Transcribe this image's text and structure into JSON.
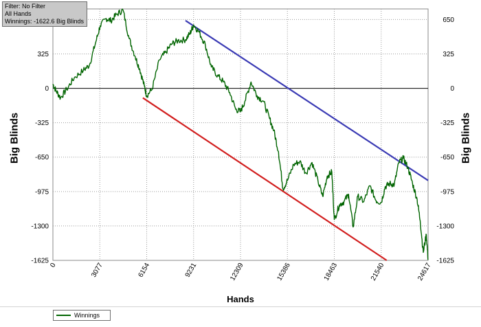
{
  "overlay": {
    "filter_line": "Filter: No Filter",
    "hands_line": "All Hands",
    "winnings_line": "Winnings: -1622.6 Big Blinds"
  },
  "colors": {
    "series": "#006400",
    "upper_trend": "#3a3ab4",
    "lower_trend": "#d21e1e",
    "grid": "#9a9a9a",
    "zero_line": "#000000"
  },
  "chart_data": {
    "type": "line",
    "xlabel": "Hands",
    "ylabel": "Big Blinds",
    "xlim": [
      0,
      24617
    ],
    "ylim": [
      -1625,
      750
    ],
    "x_ticks": [
      "0",
      "3077",
      "6154",
      "9231",
      "12309",
      "15386",
      "18463",
      "21540",
      "24617"
    ],
    "x_tick_values": [
      0,
      3077,
      6154,
      9231,
      12309,
      15386,
      18463,
      21540,
      24617
    ],
    "y_ticks": [
      "650",
      "325",
      "0",
      "-325",
      "-650",
      "-975",
      "-1300",
      "-1625"
    ],
    "y_tick_values": [
      650,
      325,
      0,
      -325,
      -650,
      -975,
      -1300,
      -1625
    ],
    "grid": true,
    "legend_position": "bottom-left",
    "series": [
      {
        "name": "Winnings",
        "color": "#006400",
        "x": [
          0,
          200,
          500,
          900,
          1400,
          2000,
          2400,
          2800,
          3100,
          3500,
          3800,
          4200,
          4600,
          5000,
          5400,
          5700,
          6000,
          6154,
          6500,
          7000,
          7400,
          7800,
          8200,
          8700,
          9000,
          9231,
          9600,
          10000,
          10400,
          10800,
          11200,
          11600,
          12000,
          12309,
          12600,
          13000,
          13400,
          13800,
          14200,
          14500,
          14800,
          15100,
          15386,
          15800,
          16200,
          16600,
          17000,
          17400,
          17700,
          18000,
          18300,
          18463,
          18800,
          19100,
          19400,
          19700,
          20000,
          20400,
          20800,
          21200,
          21540,
          21800,
          22100,
          22400,
          22700,
          23000,
          23300,
          23600,
          23900,
          24100,
          24300,
          24500,
          24617
        ],
        "y": [
          40,
          -20,
          -90,
          -10,
          100,
          170,
          220,
          430,
          590,
          660,
          640,
          700,
          740,
          470,
          300,
          180,
          20,
          -70,
          -10,
          270,
          340,
          420,
          450,
          460,
          520,
          600,
          530,
          410,
          200,
          120,
          60,
          -40,
          -200,
          -220,
          -120,
          60,
          -70,
          -120,
          -280,
          -400,
          -600,
          -950,
          -870,
          -720,
          -690,
          -800,
          -700,
          -880,
          -1020,
          -830,
          -790,
          -1240,
          -1100,
          -1070,
          -1000,
          -1310,
          -1020,
          -1070,
          -920,
          -1060,
          -1080,
          -930,
          -900,
          -910,
          -700,
          -660,
          -750,
          -900,
          -1050,
          -1250,
          -1550,
          -1380,
          -1620
        ]
      }
    ],
    "trend_lines": [
      {
        "color": "#3a3ab4",
        "x": [
          8700,
          24617
        ],
        "y": [
          640,
          -870
        ]
      },
      {
        "color": "#d21e1e",
        "x": [
          5900,
          21900
        ],
        "y": [
          -90,
          -1625
        ]
      }
    ]
  }
}
